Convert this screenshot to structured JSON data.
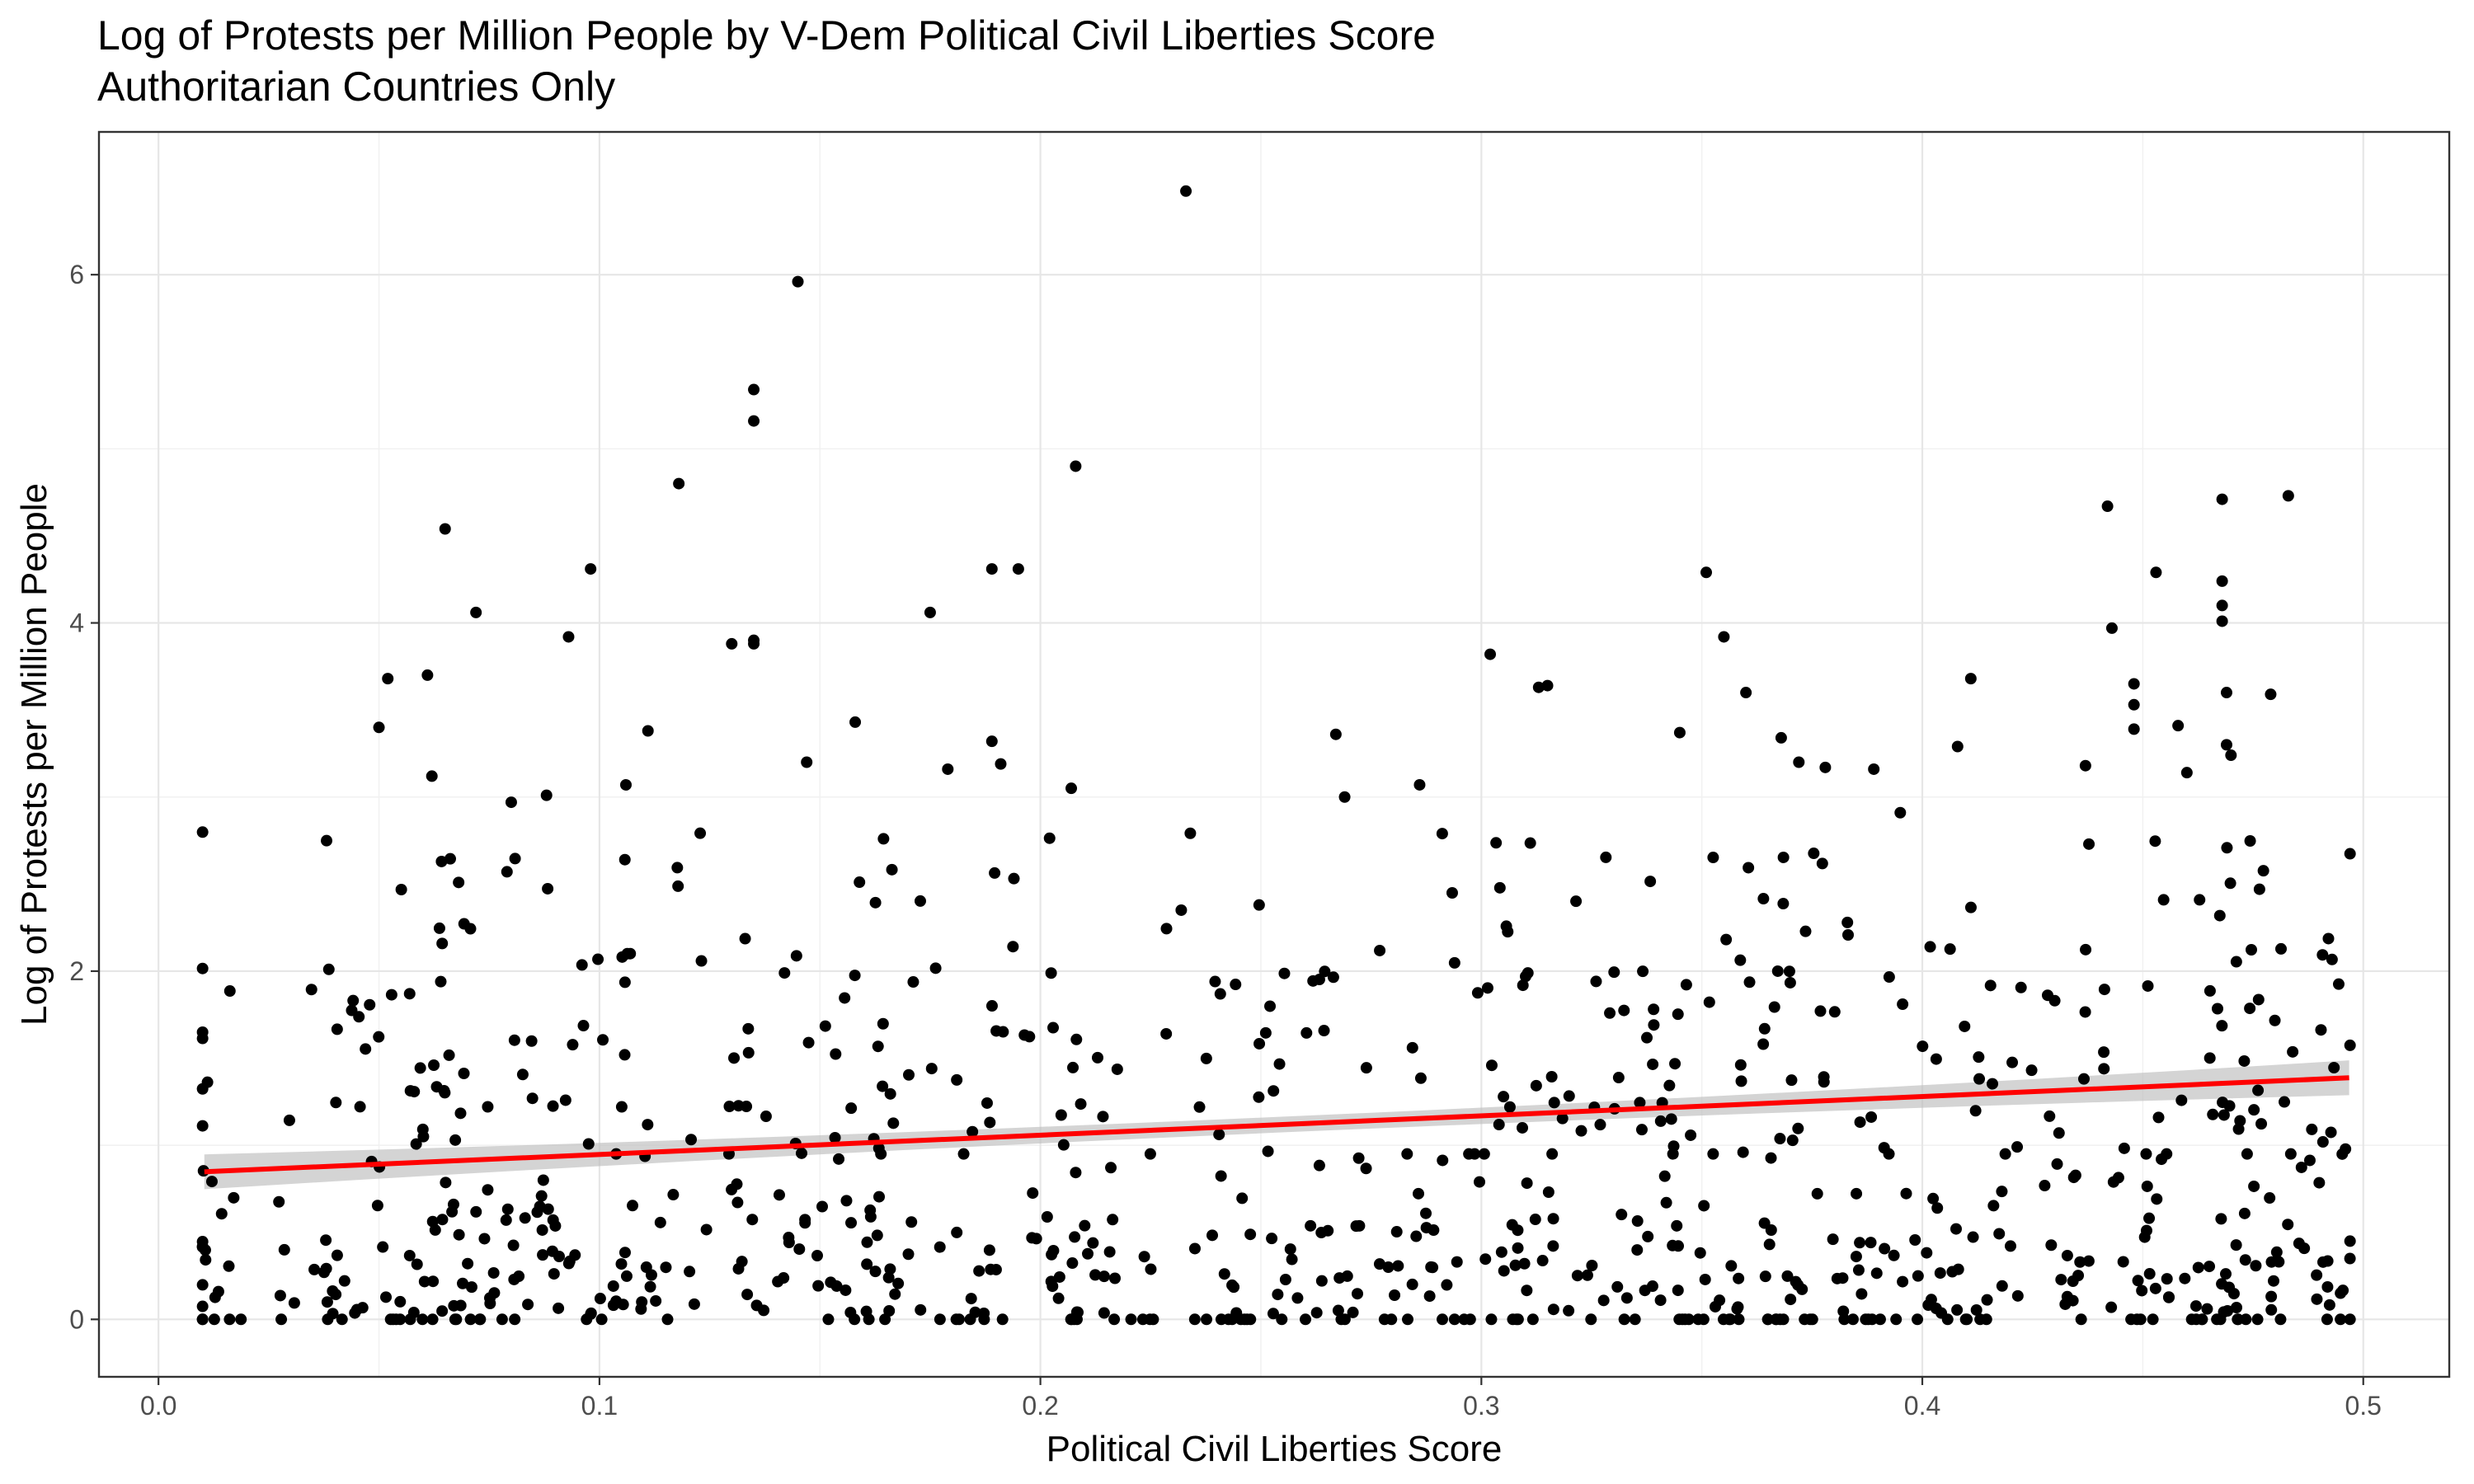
{
  "chart_data": {
    "type": "scatter",
    "title": "Log of Protests per Million People by V-Dem Political Civil Liberties Score",
    "subtitle": "Authoritarian Countries Only",
    "xlabel": "Political Civil Liberties Score",
    "ylabel": "Log of Protests per Million People",
    "xlim": [
      -0.0135,
      0.5195
    ],
    "ylim": [
      -0.33,
      6.82
    ],
    "x_ticks": [
      "0.0",
      "0.1",
      "0.2",
      "0.3",
      "0.4",
      "0.5"
    ],
    "x_tick_values": [
      0.0,
      0.1,
      0.2,
      0.3,
      0.4,
      0.5
    ],
    "y_ticks": [
      "0",
      "2",
      "4",
      "6"
    ],
    "y_tick_values": [
      0,
      2,
      4,
      6
    ],
    "grid": true,
    "point_color": "#000000",
    "trend_line": {
      "method": "linear",
      "color": "#ff0000",
      "x_range": [
        0.0104,
        0.4968
      ],
      "intercept": 0.836,
      "slope": 1.11,
      "ci_halfwidth_at_ends": 0.1,
      "ci_halfwidth_at_center": 0.045,
      "ci_color": "#bdbdbd"
    },
    "points_labeled": [
      [
        0.233,
        6.48
      ],
      [
        0.145,
        5.96
      ],
      [
        0.135,
        5.34
      ],
      [
        0.135,
        5.16
      ],
      [
        0.208,
        4.9
      ],
      [
        0.118,
        4.8
      ],
      [
        0.065,
        4.54
      ],
      [
        0.098,
        4.31
      ],
      [
        0.189,
        4.31
      ],
      [
        0.195,
        4.31
      ],
      [
        0.072,
        4.06
      ],
      [
        0.175,
        4.06
      ],
      [
        0.093,
        3.92
      ],
      [
        0.13,
        3.88
      ],
      [
        0.135,
        3.88
      ],
      [
        0.135,
        3.9
      ],
      [
        0.052,
        3.68
      ],
      [
        0.061,
        3.7
      ],
      [
        0.05,
        3.4
      ],
      [
        0.111,
        3.38
      ],
      [
        0.158,
        3.43
      ],
      [
        0.062,
        3.12
      ],
      [
        0.106,
        3.07
      ],
      [
        0.189,
        3.32
      ],
      [
        0.191,
        3.19
      ],
      [
        0.179,
        3.16
      ],
      [
        0.207,
        3.05
      ],
      [
        0.08,
        2.97
      ],
      [
        0.088,
        3.01
      ],
      [
        0.147,
        3.2
      ],
      [
        0.302,
        3.82
      ],
      [
        0.313,
        3.63
      ],
      [
        0.315,
        3.64
      ],
      [
        0.351,
        4.29
      ],
      [
        0.355,
        3.92
      ],
      [
        0.36,
        3.6
      ],
      [
        0.345,
        3.37
      ],
      [
        0.267,
        3.36
      ],
      [
        0.269,
        3.0
      ],
      [
        0.286,
        3.07
      ],
      [
        0.411,
        3.68
      ],
      [
        0.408,
        3.29
      ],
      [
        0.443,
        3.97
      ],
      [
        0.442,
        4.67
      ],
      [
        0.453,
        4.29
      ],
      [
        0.468,
        4.71
      ],
      [
        0.483,
        4.73
      ],
      [
        0.468,
        4.24
      ],
      [
        0.468,
        4.1
      ],
      [
        0.468,
        4.01
      ],
      [
        0.469,
        3.6
      ],
      [
        0.479,
        3.59
      ],
      [
        0.448,
        3.65
      ],
      [
        0.448,
        3.53
      ],
      [
        0.448,
        3.39
      ],
      [
        0.458,
        3.41
      ],
      [
        0.46,
        3.14
      ],
      [
        0.469,
        3.3
      ],
      [
        0.47,
        3.24
      ],
      [
        0.437,
        3.18
      ],
      [
        0.378,
        3.17
      ],
      [
        0.368,
        3.34
      ],
      [
        0.372,
        3.2
      ],
      [
        0.389,
        3.16
      ],
      [
        0.395,
        2.91
      ]
    ]
  }
}
